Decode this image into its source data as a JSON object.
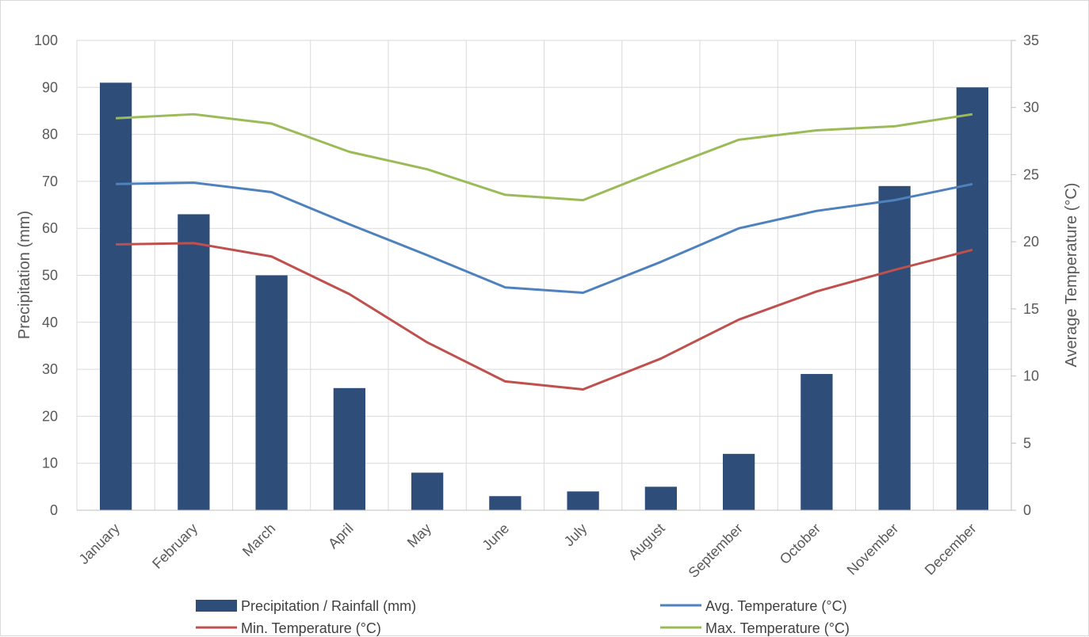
{
  "chart_data": {
    "type": "bar",
    "categories": [
      "January",
      "February",
      "March",
      "April",
      "May",
      "June",
      "July",
      "August",
      "September",
      "October",
      "November",
      "December"
    ],
    "bar_series": {
      "name": "Precipitation / Rainfall (mm)",
      "values": [
        91,
        63,
        50,
        26,
        8,
        3,
        4,
        5,
        12,
        29,
        69,
        90
      ],
      "color": "#2e4d78",
      "axis": "left"
    },
    "line_series": [
      {
        "name": "Avg. Temperature (°C)",
        "values": [
          24.3,
          24.4,
          23.7,
          21.3,
          19.0,
          16.6,
          16.2,
          18.5,
          21.0,
          22.3,
          23.1,
          24.3
        ],
        "color": "#4f81bd",
        "axis": "right"
      },
      {
        "name": "Min. Temperature (°C)",
        "values": [
          19.8,
          19.9,
          18.9,
          16.1,
          12.5,
          9.6,
          9.0,
          11.3,
          14.2,
          16.3,
          17.9,
          19.4
        ],
        "color": "#c0504d",
        "axis": "right"
      },
      {
        "name": "Max. Temperature (°C)",
        "values": [
          29.2,
          29.5,
          28.8,
          26.7,
          25.4,
          23.5,
          23.1,
          25.4,
          27.6,
          28.3,
          28.6,
          29.5
        ],
        "color": "#9bbb59",
        "axis": "right"
      }
    ],
    "ylabel": "Precipitation (mm)",
    "y2label": "Average Temperature (°C)",
    "ylim": [
      0,
      100
    ],
    "y2lim": [
      0,
      35
    ],
    "yticks": [
      "0",
      "10",
      "20",
      "30",
      "40",
      "50",
      "60",
      "70",
      "80",
      "90",
      "100"
    ],
    "y2ticks": [
      "0",
      "5",
      "10",
      "15",
      "20",
      "25",
      "30",
      "35"
    ],
    "grid": true,
    "legend_position": "bottom",
    "gridline_color": "#d9d9d9"
  }
}
